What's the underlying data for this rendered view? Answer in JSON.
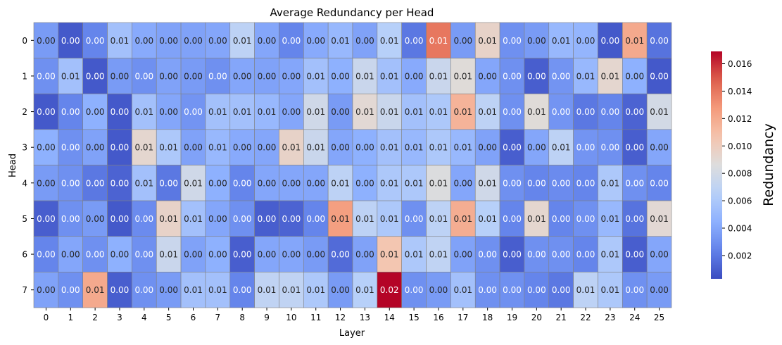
{
  "chart_data": {
    "type": "heatmap",
    "title": "Average Redundancy per Head",
    "xlabel": "Layer",
    "ylabel": "Head",
    "x_categories": [
      "0",
      "1",
      "2",
      "3",
      "4",
      "5",
      "6",
      "7",
      "8",
      "9",
      "10",
      "11",
      "12",
      "13",
      "14",
      "15",
      "16",
      "17",
      "18",
      "19",
      "20",
      "21",
      "22",
      "23",
      "24",
      "25"
    ],
    "y_categories": [
      "0",
      "1",
      "2",
      "3",
      "4",
      "5",
      "6",
      "7"
    ],
    "colormap": "coolwarm",
    "vmin": 0.0003,
    "vmax": 0.0169,
    "colorbar": {
      "label": "Redundancy",
      "ticks": [
        0.002,
        0.004,
        0.006,
        0.008,
        0.01,
        0.012,
        0.014,
        0.016
      ],
      "tick_labels": [
        "0.002",
        "0.004",
        "0.006",
        "0.008",
        "0.010",
        "0.012",
        "0.014",
        "0.016"
      ]
    },
    "annotation_format": "2 decimals",
    "values": [
      [
        0.0035,
        0.0008,
        0.0025,
        0.0055,
        0.0042,
        0.0038,
        0.0038,
        0.004,
        0.0068,
        0.004,
        0.0025,
        0.0042,
        0.005,
        0.0038,
        0.0065,
        0.002,
        0.014,
        0.0035,
        0.0095,
        0.003,
        0.0035,
        0.005,
        0.0048,
        0.0008,
        0.012,
        0.0018
      ],
      [
        0.003,
        0.0055,
        0.0008,
        0.0035,
        0.003,
        0.0038,
        0.0035,
        0.003,
        0.004,
        0.0038,
        0.004,
        0.0055,
        0.0045,
        0.0075,
        0.0055,
        0.0042,
        0.0075,
        0.0088,
        0.004,
        0.003,
        0.001,
        0.0032,
        0.005,
        0.0092,
        0.0045,
        0.0008
      ],
      [
        0.0008,
        0.0025,
        0.0045,
        0.0008,
        0.0055,
        0.004,
        0.0032,
        0.0055,
        0.0055,
        0.005,
        0.004,
        0.0078,
        0.0035,
        0.009,
        0.0075,
        0.0055,
        0.006,
        0.0115,
        0.0068,
        0.003,
        0.0088,
        0.0032,
        0.002,
        0.0025,
        0.0012,
        0.008
      ],
      [
        0.0045,
        0.003,
        0.0038,
        0.0008,
        0.0092,
        0.006,
        0.0038,
        0.005,
        0.0042,
        0.004,
        0.0095,
        0.0075,
        0.004,
        0.0045,
        0.0055,
        0.005,
        0.006,
        0.005,
        0.0038,
        0.001,
        0.004,
        0.0068,
        0.0032,
        0.003,
        0.001,
        0.004
      ],
      [
        0.0035,
        0.003,
        0.002,
        0.0012,
        0.0055,
        0.002,
        0.0078,
        0.0045,
        0.0025,
        0.004,
        0.004,
        0.004,
        0.0068,
        0.0045,
        0.006,
        0.006,
        0.0085,
        0.004,
        0.0078,
        0.003,
        0.0025,
        0.0028,
        0.0025,
        0.006,
        0.003,
        0.0025
      ],
      [
        0.001,
        0.003,
        0.0035,
        0.0008,
        0.0028,
        0.0095,
        0.0055,
        0.004,
        0.003,
        0.001,
        0.0012,
        0.0025,
        0.0125,
        0.0068,
        0.006,
        0.003,
        0.0068,
        0.0118,
        0.0065,
        0.0025,
        0.0092,
        0.0025,
        0.003,
        0.005,
        0.0018,
        0.009
      ],
      [
        0.0025,
        0.004,
        0.003,
        0.0045,
        0.003,
        0.0075,
        0.0038,
        0.0045,
        0.001,
        0.004,
        0.004,
        0.0035,
        0.0015,
        0.0038,
        0.0105,
        0.006,
        0.007,
        0.0038,
        0.003,
        0.001,
        0.003,
        0.003,
        0.0025,
        0.006,
        0.001,
        0.004
      ],
      [
        0.0038,
        0.003,
        0.012,
        0.001,
        0.003,
        0.0035,
        0.0055,
        0.0055,
        0.0025,
        0.007,
        0.007,
        0.006,
        0.0035,
        0.0065,
        0.0169,
        0.003,
        0.0035,
        0.0055,
        0.003,
        0.003,
        0.0025,
        0.002,
        0.0068,
        0.006,
        0.003,
        0.0035
      ]
    ]
  }
}
